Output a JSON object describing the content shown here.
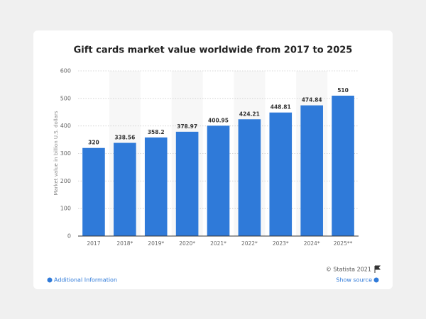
{
  "chart_data": {
    "type": "bar",
    "title": "Gift cards market value worldwide from 2017 to 2025",
    "y_label": "Market value in billion U.S. dollars",
    "categories": [
      "2017",
      "2018*",
      "2019*",
      "2020*",
      "2021*",
      "2022*",
      "2023*",
      "2024*",
      "2025**"
    ],
    "values": [
      320,
      338.56,
      358.2,
      378.97,
      400.95,
      424.21,
      448.81,
      474.84,
      510
    ],
    "color": "#2f7ad9",
    "ylim": [
      0,
      600
    ],
    "yticks": [
      0,
      100,
      200,
      300,
      400,
      500,
      600
    ],
    "grid": true
  },
  "footer": {
    "copyright": "© Statista 2021",
    "additional_info": "Additional Information",
    "show_source": "Show source"
  }
}
